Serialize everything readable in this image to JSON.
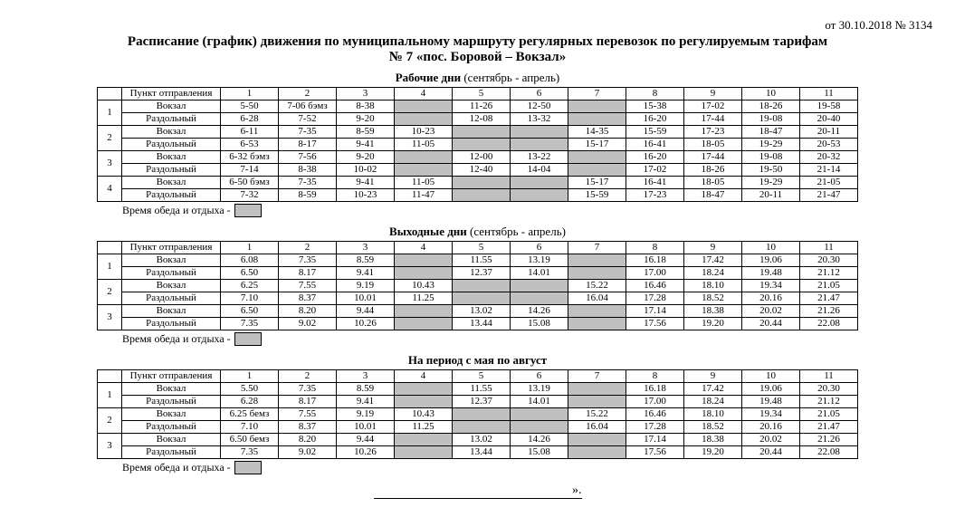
{
  "meta": {
    "date_line": "от 30.10.2018 № 3134",
    "title_line1": "Расписание (график) движения по муниципальному маршруту регулярных перевозок по регулируемым тарифам",
    "title_line2": "№ 7 «пос. Боровой – Вокзал»",
    "break_label": "Время обеда и отдыха -",
    "signature_mark": "».",
    "shaded_color": "#c0c0c0",
    "border_color": "#000000"
  },
  "captions": {
    "s1": {
      "main": "Рабочие дни",
      "sub": " (сентябрь - апрель)"
    },
    "s2": {
      "main": "Выходные дни",
      "sub": " (сентябрь - апрель)"
    },
    "s3": {
      "main": "На период с мая по август",
      "sub": ""
    }
  },
  "header": {
    "dep_label": "Пункт отправления",
    "cols": [
      "1",
      "2",
      "3",
      "4",
      "5",
      "6",
      "7",
      "8",
      "9",
      "10",
      "11"
    ]
  },
  "sections": [
    {
      "caption_key": "s1",
      "groups": [
        {
          "num": "1",
          "rows": [
            {
              "dep": "Вокзал",
              "t": [
                "5-50",
                "7-06 бэмз",
                "8-38",
                "",
                "11-26",
                "12-50",
                "",
                "15-38",
                "17-02",
                "18-26",
                "19-58"
              ],
              "sh": [
                3,
                6
              ]
            },
            {
              "dep": "Раздольный",
              "t": [
                "6-28",
                "7-52",
                "9-20",
                "",
                "12-08",
                "13-32",
                "",
                "16-20",
                "17-44",
                "19-08",
                "20-40"
              ],
              "sh": [
                3,
                6
              ]
            }
          ]
        },
        {
          "num": "2",
          "rows": [
            {
              "dep": "Вокзал",
              "t": [
                "6-11",
                "7-35",
                "8-59",
                "10-23",
                "",
                "",
                "14-35",
                "15-59",
                "17-23",
                "18-47",
                "20-11"
              ],
              "sh": [
                4,
                5
              ]
            },
            {
              "dep": "Раздольный",
              "t": [
                "6-53",
                "8-17",
                "9-41",
                "11-05",
                "",
                "",
                "15-17",
                "16-41",
                "18-05",
                "19-29",
                "20-53"
              ],
              "sh": [
                4,
                5
              ]
            }
          ]
        },
        {
          "num": "3",
          "rows": [
            {
              "dep": "Вокзал",
              "t": [
                "6-32 бэмз",
                "7-56",
                "9-20",
                "",
                "12-00",
                "13-22",
                "",
                "16-20",
                "17-44",
                "19-08",
                "20-32"
              ],
              "sh": [
                3,
                6
              ]
            },
            {
              "dep": "Раздольный",
              "t": [
                "7-14",
                "8-38",
                "10-02",
                "",
                "12-40",
                "14-04",
                "",
                "17-02",
                "18-26",
                "19-50",
                "21-14"
              ],
              "sh": [
                3,
                6
              ]
            }
          ]
        },
        {
          "num": "4",
          "rows": [
            {
              "dep": "Вокзал",
              "t": [
                "6-50 бэмз",
                "7-35",
                "9-41",
                "11-05",
                "",
                "",
                "15-17",
                "16-41",
                "18-05",
                "19-29",
                "21-05"
              ],
              "sh": [
                4,
                5
              ]
            },
            {
              "dep": "Раздольный",
              "t": [
                "7-32",
                "8-59",
                "10-23",
                "11-47",
                "",
                "",
                "15-59",
                "17-23",
                "18-47",
                "20-11",
                "21-47"
              ],
              "sh": [
                4,
                5
              ]
            }
          ]
        }
      ]
    },
    {
      "caption_key": "s2",
      "groups": [
        {
          "num": "1",
          "rows": [
            {
              "dep": "Вокзал",
              "t": [
                "6.08",
                "7.35",
                "8.59",
                "",
                "11.55",
                "13.19",
                "",
                "16.18",
                "17.42",
                "19.06",
                "20.30"
              ],
              "sh": [
                3,
                6
              ]
            },
            {
              "dep": "Раздольный",
              "t": [
                "6.50",
                "8.17",
                "9.41",
                "",
                "12.37",
                "14.01",
                "",
                "17.00",
                "18.24",
                "19.48",
                "21.12"
              ],
              "sh": [
                3,
                6
              ]
            }
          ]
        },
        {
          "num": "2",
          "rows": [
            {
              "dep": "Вокзал",
              "t": [
                "6.25",
                "7.55",
                "9.19",
                "10.43",
                "",
                "",
                "15.22",
                "16.46",
                "18.10",
                "19.34",
                "21.05"
              ],
              "sh": [
                4,
                5
              ]
            },
            {
              "dep": "Раздольный",
              "t": [
                "7.10",
                "8.37",
                "10.01",
                "11.25",
                "",
                "",
                "16.04",
                "17.28",
                "18.52",
                "20.16",
                "21.47"
              ],
              "sh": [
                4,
                5
              ]
            }
          ]
        },
        {
          "num": "3",
          "rows": [
            {
              "dep": "Вокзал",
              "t": [
                "6.50",
                "8.20",
                "9.44",
                "",
                "13.02",
                "14.26",
                "",
                "17.14",
                "18.38",
                "20.02",
                "21.26"
              ],
              "sh": [
                3,
                6
              ]
            },
            {
              "dep": "Раздольный",
              "t": [
                "7.35",
                "9.02",
                "10.26",
                "",
                "13.44",
                "15.08",
                "",
                "17.56",
                "19.20",
                "20.44",
                "22.08"
              ],
              "sh": [
                3,
                6
              ]
            }
          ]
        }
      ]
    },
    {
      "caption_key": "s3",
      "groups": [
        {
          "num": "1",
          "rows": [
            {
              "dep": "Вокзал",
              "t": [
                "5.50",
                "7.35",
                "8.59",
                "",
                "11.55",
                "13.19",
                "",
                "16.18",
                "17.42",
                "19.06",
                "20.30"
              ],
              "sh": [
                3,
                6
              ]
            },
            {
              "dep": "Раздольный",
              "t": [
                "6.28",
                "8.17",
                "9.41",
                "",
                "12.37",
                "14.01",
                "",
                "17.00",
                "18.24",
                "19.48",
                "21.12"
              ],
              "sh": [
                3,
                6
              ]
            }
          ]
        },
        {
          "num": "2",
          "rows": [
            {
              "dep": "Вокзал",
              "t": [
                "6.25 бемз",
                "7.55",
                "9.19",
                "10.43",
                "",
                "",
                "15.22",
                "16.46",
                "18.10",
                "19.34",
                "21.05"
              ],
              "sh": [
                4,
                5
              ]
            },
            {
              "dep": "Раздольный",
              "t": [
                "7.10",
                "8.37",
                "10.01",
                "11.25",
                "",
                "",
                "16.04",
                "17.28",
                "18.52",
                "20.16",
                "21.47"
              ],
              "sh": [
                4,
                5
              ]
            }
          ]
        },
        {
          "num": "3",
          "rows": [
            {
              "dep": "Вокзал",
              "t": [
                "6.50 бемз",
                "8.20",
                "9.44",
                "",
                "13.02",
                "14.26",
                "",
                "17.14",
                "18.38",
                "20.02",
                "21.26"
              ],
              "sh": [
                3,
                6
              ]
            },
            {
              "dep": "Раздольный",
              "t": [
                "7.35",
                "9.02",
                "10.26",
                "",
                "13.44",
                "15.08",
                "",
                "17.56",
                "19.20",
                "20.44",
                "22.08"
              ],
              "sh": [
                3,
                6
              ]
            }
          ]
        }
      ]
    }
  ]
}
